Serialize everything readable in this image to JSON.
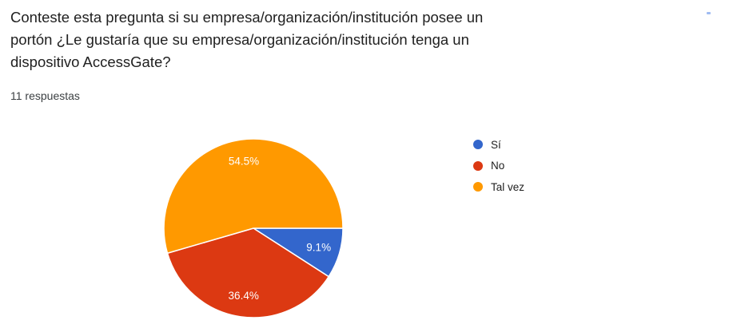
{
  "question_card": {
    "title": "Conteste esta pregunta si su empresa/organización/institución posee un\nportón ¿Le gustaría que su empresa/organización/institución tenga un\ndispositivo AccessGate?",
    "responses_label": "11 respuestas"
  },
  "chart_data": {
    "type": "pie",
    "title": "Conteste esta pregunta si su empresa/organización/institución posee un portón ¿Le gustaría que su empresa/organización/institución tenga un dispositivo AccessGate?",
    "subtitle": "11 respuestas",
    "total_responses": 11,
    "categories": [
      "Sí",
      "No",
      "Tal vez"
    ],
    "values": [
      9.1,
      36.4,
      54.5
    ],
    "value_unit": "percent",
    "labels": [
      "9.1%",
      "36.4%",
      "54.5%"
    ],
    "colors": [
      "#3366cc",
      "#dc3912",
      "#ff9900"
    ],
    "slice_label_color": "#ffffff",
    "separator_color": "#ffffff",
    "start_angle_deg": 0,
    "direction": "clockwise",
    "legend_position": "right",
    "grid": "off"
  }
}
